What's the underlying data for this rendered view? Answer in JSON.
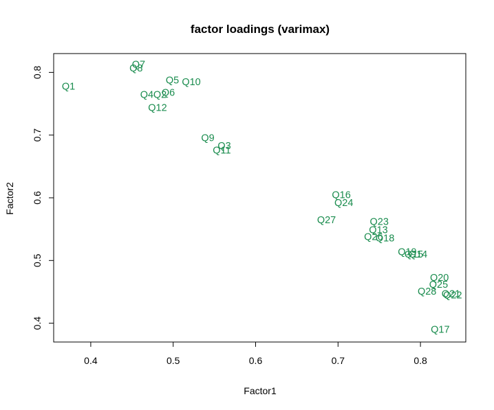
{
  "chart_data": {
    "type": "scatter",
    "title": "factor loadings (varimax)",
    "xlabel": "Factor1",
    "ylabel": "Factor2",
    "xlim": [
      0.355,
      0.855
    ],
    "ylim": [
      0.37,
      0.83
    ],
    "x_ticks": [
      0.4,
      0.5,
      0.6,
      0.7,
      0.8
    ],
    "y_ticks": [
      0.4,
      0.5,
      0.6,
      0.7,
      0.8
    ],
    "x_tick_labels": [
      "0.4",
      "0.5",
      "0.6",
      "0.7",
      "0.8"
    ],
    "y_tick_labels": [
      "0.4",
      "0.5",
      "0.6",
      "0.7",
      "0.8"
    ],
    "grid": false,
    "label_color": "#1a8c4e",
    "points": [
      {
        "label": "Q1",
        "x": 0.373,
        "y": 0.777
      },
      {
        "label": "Q2",
        "x": 0.484,
        "y": 0.764
      },
      {
        "label": "Q3",
        "x": 0.562,
        "y": 0.682
      },
      {
        "label": "Q4",
        "x": 0.468,
        "y": 0.764
      },
      {
        "label": "Q5",
        "x": 0.499,
        "y": 0.787
      },
      {
        "label": "Q6",
        "x": 0.494,
        "y": 0.767
      },
      {
        "label": "Q7",
        "x": 0.458,
        "y": 0.812
      },
      {
        "label": "Q8",
        "x": 0.455,
        "y": 0.806
      },
      {
        "label": "Q9",
        "x": 0.542,
        "y": 0.695
      },
      {
        "label": "Q10",
        "x": 0.522,
        "y": 0.784
      },
      {
        "label": "Q11",
        "x": 0.559,
        "y": 0.675
      },
      {
        "label": "Q12",
        "x": 0.481,
        "y": 0.743
      },
      {
        "label": "Q13",
        "x": 0.749,
        "y": 0.548
      },
      {
        "label": "Q14",
        "x": 0.797,
        "y": 0.509
      },
      {
        "label": "Q15",
        "x": 0.792,
        "y": 0.509
      },
      {
        "label": "Q16",
        "x": 0.704,
        "y": 0.604
      },
      {
        "label": "Q17",
        "x": 0.824,
        "y": 0.389
      },
      {
        "label": "Q18",
        "x": 0.757,
        "y": 0.535
      },
      {
        "label": "Q19",
        "x": 0.784,
        "y": 0.513
      },
      {
        "label": "Q20",
        "x": 0.823,
        "y": 0.472
      },
      {
        "label": "Q21",
        "x": 0.837,
        "y": 0.446
      },
      {
        "label": "Q22",
        "x": 0.839,
        "y": 0.444
      },
      {
        "label": "Q23",
        "x": 0.75,
        "y": 0.561
      },
      {
        "label": "Q24",
        "x": 0.707,
        "y": 0.591
      },
      {
        "label": "Q25",
        "x": 0.822,
        "y": 0.461
      },
      {
        "label": "Q26",
        "x": 0.743,
        "y": 0.537
      },
      {
        "label": "Q27",
        "x": 0.686,
        "y": 0.564
      },
      {
        "label": "Q28",
        "x": 0.808,
        "y": 0.45
      }
    ]
  }
}
